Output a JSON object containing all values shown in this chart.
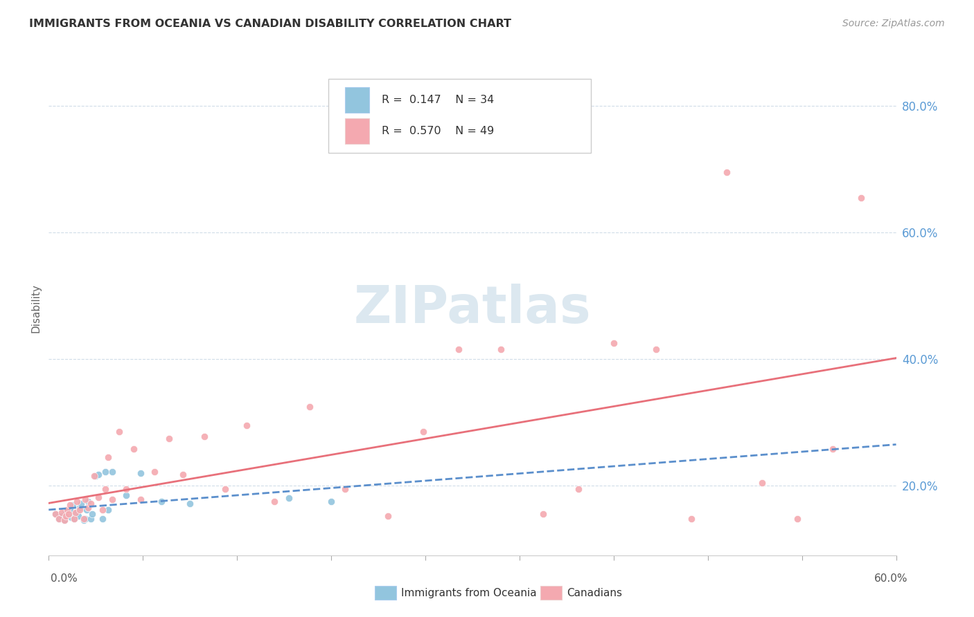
{
  "title": "IMMIGRANTS FROM OCEANIA VS CANADIAN DISABILITY CORRELATION CHART",
  "source": "Source: ZipAtlas.com",
  "ylabel": "Disability",
  "xlim": [
    0.0,
    0.6
  ],
  "ylim": [
    0.09,
    0.87
  ],
  "legend1_r": "0.147",
  "legend1_n": "34",
  "legend2_r": "0.570",
  "legend2_n": "49",
  "color_blue": "#92c5de",
  "color_pink": "#f4a9b0",
  "trend_blue": "#5b8fcc",
  "trend_pink": "#e8707a",
  "y_ticks": [
    0.2,
    0.4,
    0.6,
    0.8
  ],
  "y_tick_labels": [
    "20.0%",
    "40.0%",
    "60.0%",
    "80.0%"
  ],
  "watermark_color": "#dce8f0",
  "oceania_x": [
    0.005,
    0.007,
    0.009,
    0.011,
    0.012,
    0.013,
    0.014,
    0.015,
    0.016,
    0.017,
    0.018,
    0.019,
    0.02,
    0.021,
    0.022,
    0.023,
    0.025,
    0.026,
    0.027,
    0.028,
    0.03,
    0.031,
    0.033,
    0.035,
    0.038,
    0.04,
    0.042,
    0.045,
    0.055,
    0.065,
    0.08,
    0.1,
    0.17,
    0.2
  ],
  "oceania_y": [
    0.155,
    0.148,
    0.152,
    0.145,
    0.16,
    0.155,
    0.158,
    0.162,
    0.15,
    0.17,
    0.148,
    0.155,
    0.158,
    0.152,
    0.165,
    0.172,
    0.145,
    0.148,
    0.162,
    0.175,
    0.148,
    0.155,
    0.215,
    0.218,
    0.148,
    0.222,
    0.162,
    0.222,
    0.185,
    0.22,
    0.175,
    0.172,
    0.18,
    0.175
  ],
  "canadian_x": [
    0.005,
    0.007,
    0.009,
    0.011,
    0.012,
    0.013,
    0.014,
    0.015,
    0.018,
    0.019,
    0.02,
    0.022,
    0.025,
    0.026,
    0.028,
    0.03,
    0.032,
    0.035,
    0.038,
    0.04,
    0.042,
    0.045,
    0.05,
    0.055,
    0.06,
    0.065,
    0.075,
    0.085,
    0.095,
    0.11,
    0.125,
    0.14,
    0.16,
    0.185,
    0.21,
    0.24,
    0.265,
    0.29,
    0.32,
    0.35,
    0.375,
    0.4,
    0.43,
    0.455,
    0.48,
    0.505,
    0.53,
    0.555,
    0.575
  ],
  "canadian_y": [
    0.155,
    0.148,
    0.158,
    0.145,
    0.152,
    0.162,
    0.155,
    0.17,
    0.148,
    0.158,
    0.175,
    0.162,
    0.148,
    0.178,
    0.165,
    0.172,
    0.215,
    0.182,
    0.162,
    0.195,
    0.245,
    0.178,
    0.285,
    0.195,
    0.258,
    0.178,
    0.222,
    0.275,
    0.218,
    0.278,
    0.195,
    0.295,
    0.175,
    0.325,
    0.195,
    0.152,
    0.285,
    0.415,
    0.415,
    0.155,
    0.195,
    0.425,
    0.415,
    0.148,
    0.695,
    0.205,
    0.148,
    0.258,
    0.655
  ]
}
